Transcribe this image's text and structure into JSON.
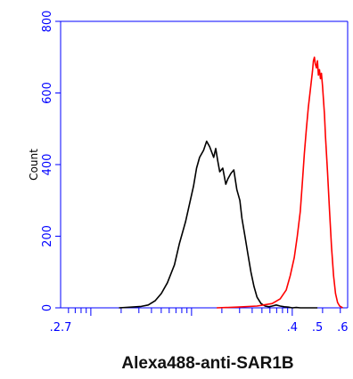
{
  "chart_data": {
    "type": "line",
    "xlabel": "Alexa488-anti-SAR1B",
    "ylabel": "Count",
    "scale_x": "log",
    "xlim": [
      -2.3,
      0.55
    ],
    "ylim": [
      0,
      800
    ],
    "y_ticks": [
      0,
      200,
      400,
      600,
      800
    ],
    "x_tick_labels": [
      {
        "value": -2.3,
        "label": ".2.7"
      },
      {
        "value": 0.0,
        "label": ".4"
      },
      {
        "value": 0.25,
        "label": ".5"
      },
      {
        "value": 0.5,
        "label": ".6"
      }
    ],
    "axis_color": "#0000ff",
    "series": [
      {
        "color": "#000000",
        "x": [
          -1.72,
          -1.6,
          -1.5,
          -1.43,
          -1.36,
          -1.3,
          -1.24,
          -1.17,
          -1.12,
          -1.06,
          -1.02,
          -0.98,
          -0.95,
          -0.92,
          -0.88,
          -0.85,
          -0.82,
          -0.78,
          -0.76,
          -0.74,
          -0.72,
          -0.69,
          -0.66,
          -0.64,
          -0.61,
          -0.58,
          -0.55,
          -0.52,
          -0.5,
          -0.47,
          -0.44,
          -0.41,
          -0.38,
          -0.35,
          -0.31,
          -0.27,
          -0.23,
          -0.2,
          -0.16,
          -0.12,
          -0.08,
          -0.04,
          0.0,
          0.04,
          0.08,
          0.15,
          0.25
        ],
        "y": [
          0,
          2,
          4,
          8,
          20,
          40,
          70,
          120,
          180,
          240,
          290,
          340,
          390,
          420,
          440,
          465,
          450,
          420,
          445,
          410,
          380,
          390,
          345,
          360,
          375,
          385,
          330,
          300,
          250,
          200,
          150,
          100,
          60,
          30,
          12,
          5,
          3,
          5,
          8,
          5,
          3,
          2,
          0,
          1,
          0,
          0,
          0
        ]
      },
      {
        "color": "#ff0000",
        "x": [
          -0.75,
          -0.55,
          -0.35,
          -0.2,
          -0.12,
          -0.06,
          -0.02,
          0.02,
          0.05,
          0.08,
          0.1,
          0.12,
          0.14,
          0.16,
          0.18,
          0.2,
          0.21,
          0.22,
          0.23,
          0.24,
          0.25,
          0.26,
          0.27,
          0.28,
          0.29,
          0.3,
          0.31,
          0.32,
          0.33,
          0.35,
          0.37,
          0.39,
          0.41,
          0.43,
          0.45,
          0.47,
          0.5
        ],
        "y": [
          0,
          2,
          5,
          12,
          25,
          50,
          90,
          140,
          200,
          270,
          350,
          430,
          500,
          560,
          610,
          660,
          690,
          700,
          680,
          670,
          690,
          650,
          665,
          640,
          655,
          620,
          580,
          540,
          480,
          380,
          270,
          170,
          90,
          40,
          15,
          5,
          0
        ]
      }
    ]
  }
}
